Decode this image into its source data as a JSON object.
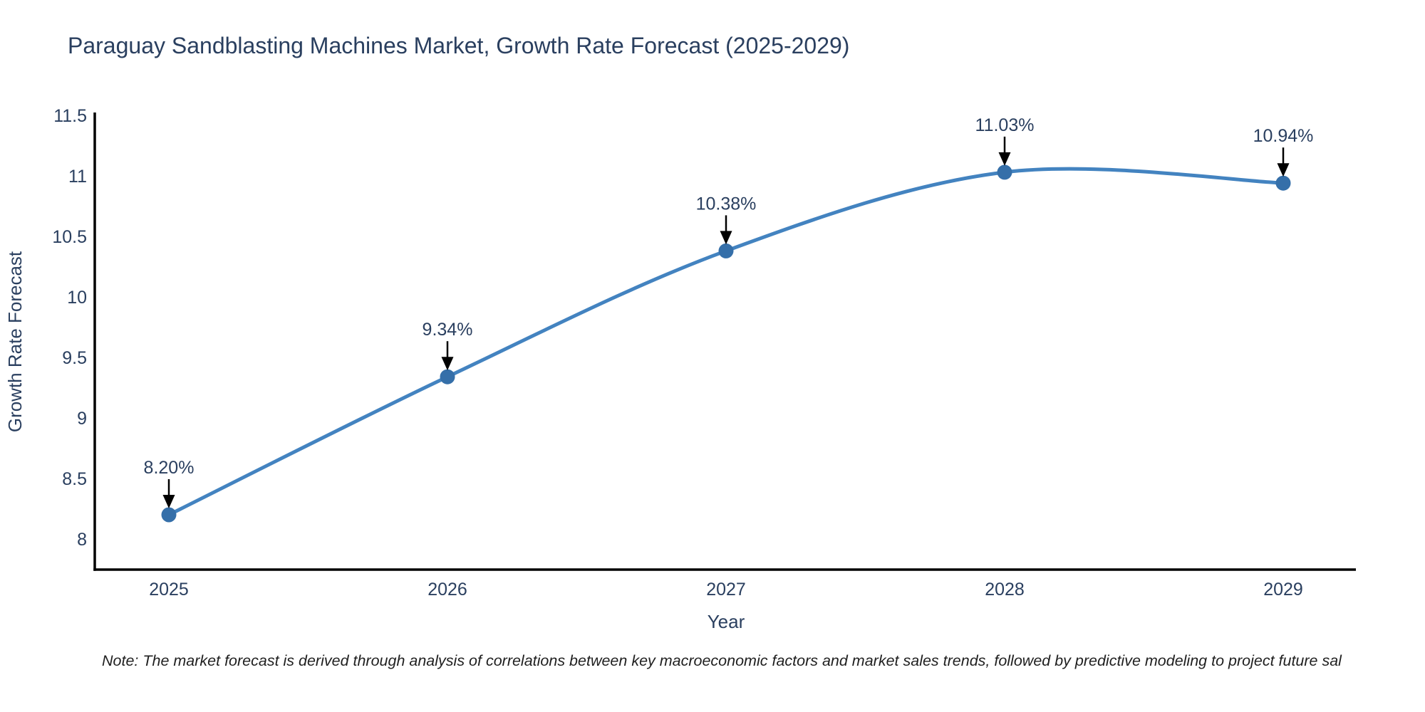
{
  "title": "Paraguay Sandblasting Machines Market, Growth Rate Forecast (2025-2029)",
  "note": "Note: The market forecast is derived through analysis of correlations between key macroeconomic factors and market sales trends, followed by predictive modeling to project future sal",
  "colors": {
    "title_text": "#2a3f5f",
    "tick_text": "#2a3f5f",
    "line": "#4383c0",
    "marker": "#356fa9",
    "axis": "#000000",
    "annotation_arrow": "#000000",
    "note_text": "#1f1f1f"
  },
  "chart_data": {
    "type": "line",
    "line_shape": "spline",
    "title": "Paraguay Sandblasting Machines Market, Growth Rate Forecast (2025-2029)",
    "categories": [
      "2025",
      "2026",
      "2027",
      "2028",
      "2029"
    ],
    "values": [
      8.2,
      9.34,
      10.38,
      11.03,
      10.94
    ],
    "point_labels": [
      "8.20%",
      "9.34%",
      "10.38%",
      "11.03%",
      "10.94%"
    ],
    "xlabel": "Year",
    "ylabel": "Growth Rate Forecast",
    "ylim": [
      7.75,
      11.5
    ],
    "yticks": [
      8,
      8.5,
      9,
      9.5,
      10,
      10.5,
      11,
      11.5
    ],
    "grid": false,
    "legend": false,
    "markers": true,
    "annotations_arrows": true
  }
}
